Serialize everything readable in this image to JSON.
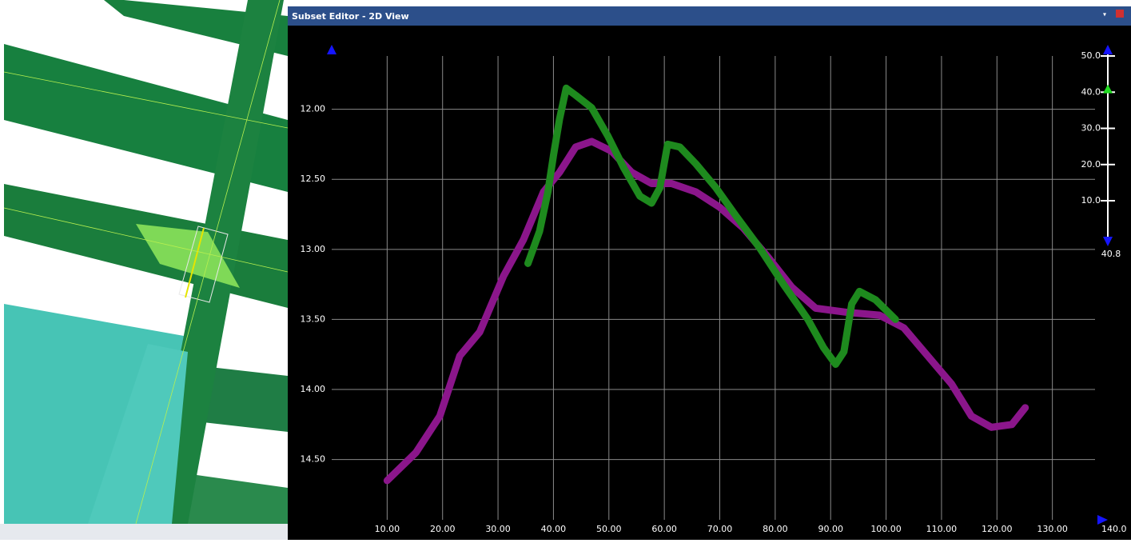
{
  "window_title": "Subset Editor - 2D View",
  "chart_data": {
    "type": "line",
    "xlim": [
      0,
      140
    ],
    "xticks": [
      {
        "value": 10,
        "label": "10.00"
      },
      {
        "value": 20,
        "label": "20.00"
      },
      {
        "value": 30,
        "label": "30.00"
      },
      {
        "value": 40,
        "label": "40.00"
      },
      {
        "value": 50,
        "label": "50.00"
      },
      {
        "value": 60,
        "label": "60.00"
      },
      {
        "value": 70,
        "label": "70.00"
      },
      {
        "value": 80,
        "label": "80.00"
      },
      {
        "value": 90,
        "label": "90.00"
      },
      {
        "value": 100,
        "label": "100.00"
      },
      {
        "value": 110,
        "label": "110.00"
      },
      {
        "value": 120,
        "label": "120.00"
      },
      {
        "value": 130,
        "label": "130.00"
      }
    ],
    "ylim": [
      11.62,
      14.93
    ],
    "y_inverted": true,
    "yticks": [
      {
        "value": 12,
        "label": "12.00"
      },
      {
        "value": 12.5,
        "label": "12.50"
      },
      {
        "value": 13,
        "label": "13.00"
      },
      {
        "value": 13.5,
        "label": "13.50"
      },
      {
        "value": 14,
        "label": "14.00"
      },
      {
        "value": 14.5,
        "label": "14.50"
      }
    ],
    "grid": true,
    "series": [
      {
        "color": "#8b168b",
        "x": [
          10,
          15.2,
          19.5,
          23.1,
          26.7,
          31.0,
          34.6,
          38.2,
          41.1,
          44.0,
          46.9,
          50.5,
          54.1,
          57.7,
          61.3,
          65.7,
          70.0,
          74.3,
          78.6,
          83.0,
          87.3,
          93.1,
          98.8,
          103.2,
          107.5,
          111.8,
          115.4,
          119.0,
          122.7,
          125.1
        ],
        "values": [
          14.65,
          14.45,
          14.19,
          13.76,
          13.59,
          13.19,
          12.93,
          12.59,
          12.45,
          12.27,
          12.23,
          12.3,
          12.45,
          12.53,
          12.53,
          12.59,
          12.7,
          12.85,
          13.05,
          13.27,
          13.42,
          13.45,
          13.47,
          13.56,
          13.76,
          13.96,
          14.19,
          14.27,
          14.25,
          14.13
        ]
      },
      {
        "color": "#1e8a1e",
        "x": [
          35.4,
          37.5,
          39.0,
          40.0,
          41.1,
          42.3,
          44.0,
          46.9,
          49.8,
          52.7,
          55.6,
          57.7,
          59.2,
          60.6,
          62.8,
          65.7,
          69.3,
          72.9,
          77.2,
          81.5,
          85.9,
          88.7,
          90.9,
          92.4,
          93.8,
          95.2,
          98.1,
          101.7
        ],
        "values": [
          13.1,
          12.87,
          12.59,
          12.33,
          12.07,
          11.85,
          11.9,
          11.99,
          12.19,
          12.42,
          12.62,
          12.67,
          12.56,
          12.25,
          12.27,
          12.39,
          12.56,
          12.76,
          12.99,
          13.25,
          13.5,
          13.7,
          13.82,
          13.73,
          13.39,
          13.3,
          13.36,
          13.5
        ]
      }
    ],
    "slider": {
      "ticks": [
        {
          "value": 50,
          "label": "50.0"
        },
        {
          "value": 40,
          "label": "40.0"
        },
        {
          "value": 30,
          "label": "30.0"
        },
        {
          "value": 20,
          "label": "20.0"
        },
        {
          "value": 10,
          "label": "10.0"
        }
      ],
      "value": 40.8,
      "value_label": "40.8"
    },
    "x_scroll_label": "140.0"
  }
}
